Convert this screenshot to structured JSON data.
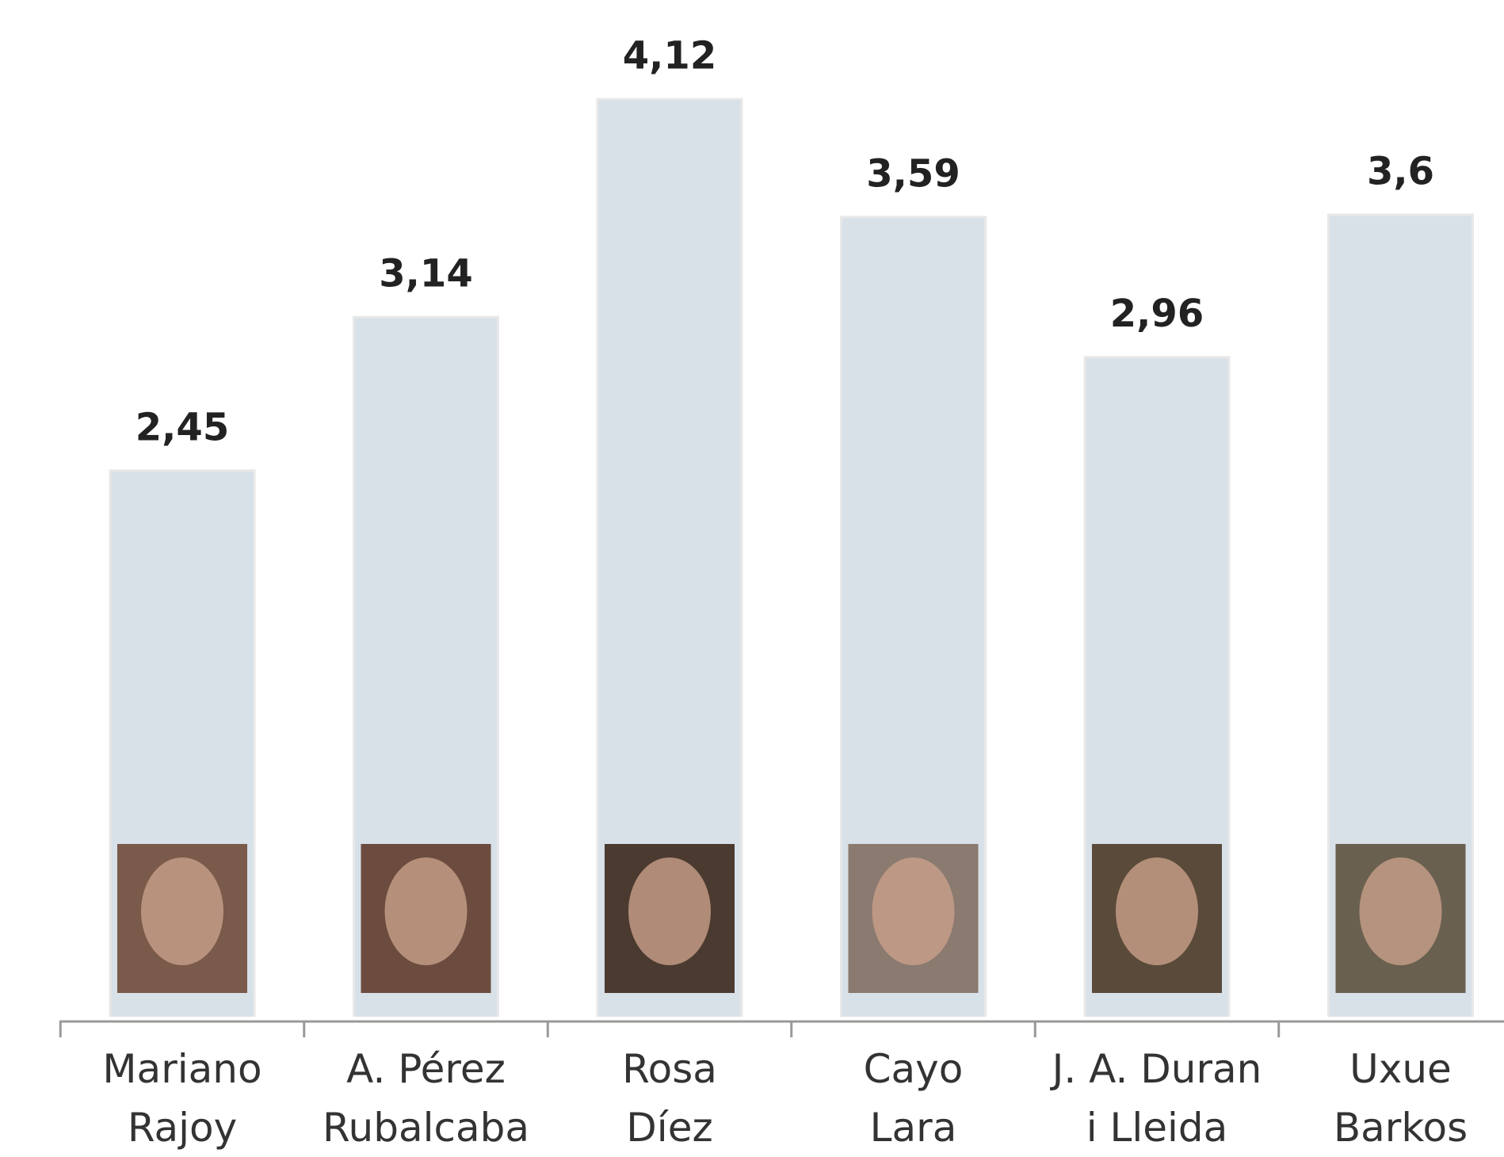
{
  "chart_data": {
    "type": "bar",
    "categories": [
      "Mariano\nRajoy",
      "A. Pérez\nRubalcaba",
      "Rosa\nDíez",
      "Cayo\nLara",
      "J. A. Duran\ni Lleida",
      "Uxue\nBarkos"
    ],
    "values": [
      2.45,
      3.14,
      4.12,
      3.59,
      2.96,
      3.6
    ],
    "value_labels": [
      "2,45",
      "3,14",
      "4,12",
      "3,59",
      "2,96",
      "3,6"
    ],
    "color": "#d8e0e8",
    "ylim": [
      0,
      4.5
    ]
  }
}
